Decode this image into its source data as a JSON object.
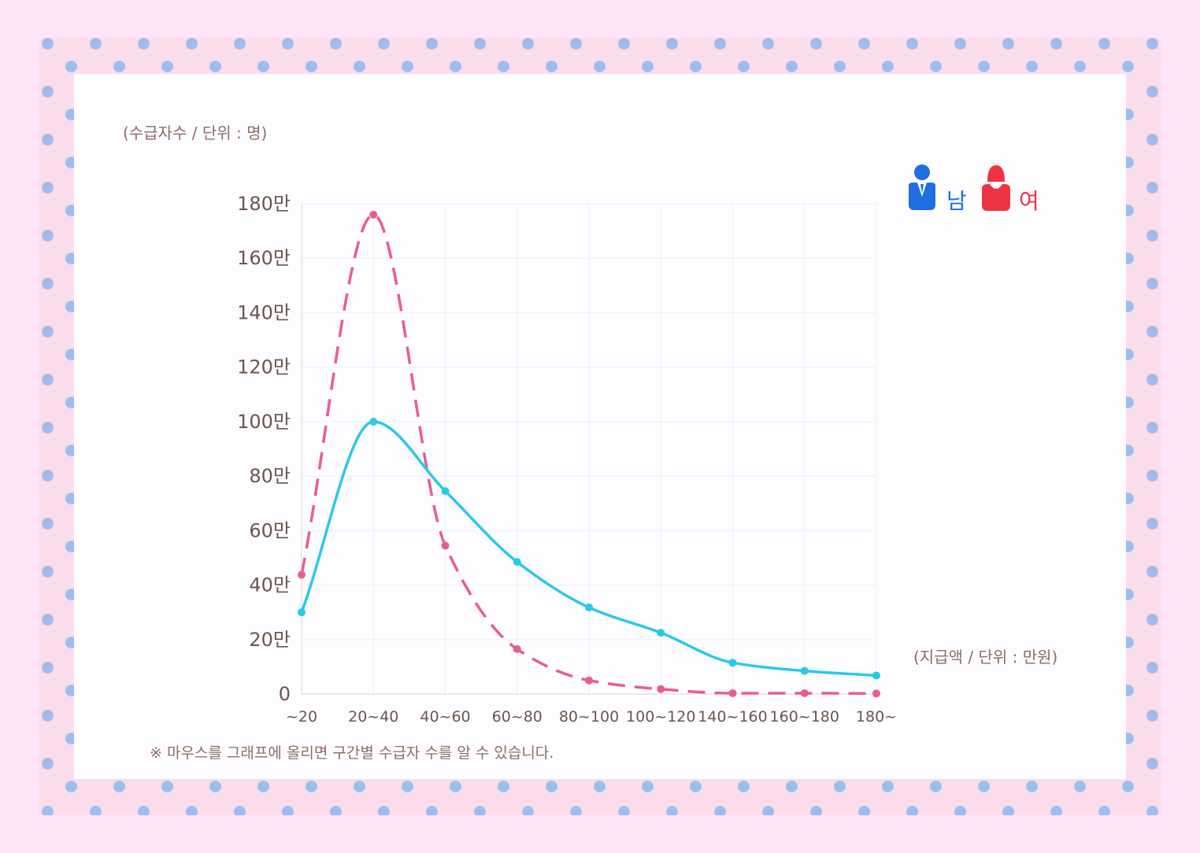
{
  "y_unit_label": "(수급자수 / 단위 : 명)",
  "x_unit_label": "(지급액 / 단위 : 만원)",
  "note": "※ 마우스를 그래프에 올리면 구간별 수급자 수를 알 수 있습니다.",
  "legend": [
    {
      "label": "남",
      "icon": "male-person-icon",
      "color": "#1f6fe0"
    },
    {
      "label": "여",
      "icon": "female-person-icon",
      "color": "#ee3344"
    }
  ],
  "colors": {
    "background": "#fde4f6",
    "frame": "#fbdcea",
    "dots": "#9cbdf0",
    "male_line": "#29c9ea",
    "female_line": "#ea5b94",
    "axis_text": "#6b5550",
    "grid": "#eef0f4"
  },
  "chart_data": {
    "type": "line",
    "categories": [
      "~20",
      "20~40",
      "40~60",
      "60~80",
      "80~100",
      "100~120",
      "140~160",
      "160~180",
      "180~"
    ],
    "ylim": [
      0,
      1800000
    ],
    "yticks": [
      {
        "value": 0,
        "label": "0"
      },
      {
        "value": 200000,
        "label": "20만"
      },
      {
        "value": 400000,
        "label": "40만"
      },
      {
        "value": 600000,
        "label": "60만"
      },
      {
        "value": 800000,
        "label": "80만"
      },
      {
        "value": 1000000,
        "label": "100만"
      },
      {
        "value": 1200000,
        "label": "120만"
      },
      {
        "value": 1400000,
        "label": "140만"
      },
      {
        "value": 1600000,
        "label": "160만"
      },
      {
        "value": 1800000,
        "label": "180만"
      }
    ],
    "series": [
      {
        "name": "남",
        "style": "solid",
        "color": "#29c9ea",
        "values": [
          300000,
          1000000,
          745000,
          485000,
          318000,
          225000,
          115000,
          85000,
          68000
        ]
      },
      {
        "name": "여",
        "style": "dashed",
        "color": "#ea5b94",
        "values": [
          438000,
          1760000,
          545000,
          165000,
          50000,
          18000,
          3000,
          3000,
          2000
        ]
      }
    ],
    "legend_position": "top-right",
    "grid": true
  }
}
